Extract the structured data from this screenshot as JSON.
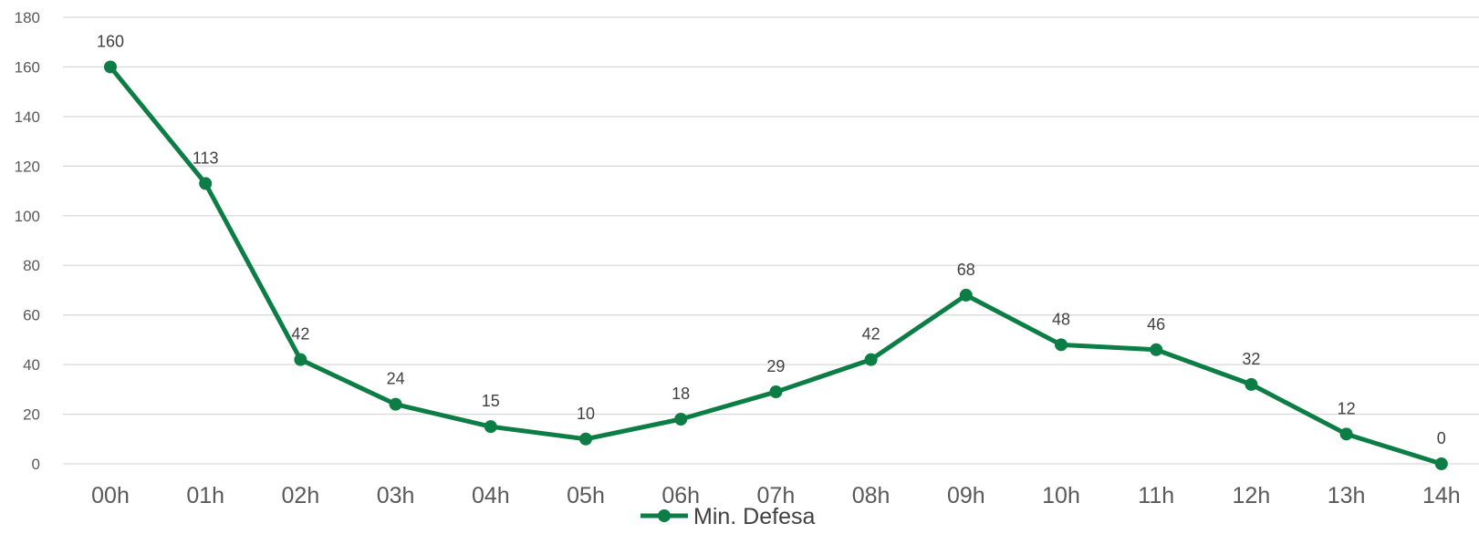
{
  "chart_data": {
    "type": "line",
    "categories": [
      "00h",
      "01h",
      "02h",
      "03h",
      "04h",
      "05h",
      "06h",
      "07h",
      "08h",
      "09h",
      "10h",
      "11h",
      "12h",
      "13h",
      "14h"
    ],
    "series": [
      {
        "name": "Min. Defesa",
        "values": [
          160,
          113,
          42,
          24,
          15,
          10,
          18,
          29,
          42,
          68,
          48,
          46,
          32,
          12,
          0
        ],
        "color": "#0b7d45"
      }
    ],
    "ylim": [
      0,
      180
    ],
    "yticks": [
      "0",
      "20",
      "40",
      "60",
      "80",
      "100",
      "120",
      "140",
      "160",
      "180"
    ],
    "grid": true,
    "legend_position": "bottom",
    "data_labels": true
  }
}
